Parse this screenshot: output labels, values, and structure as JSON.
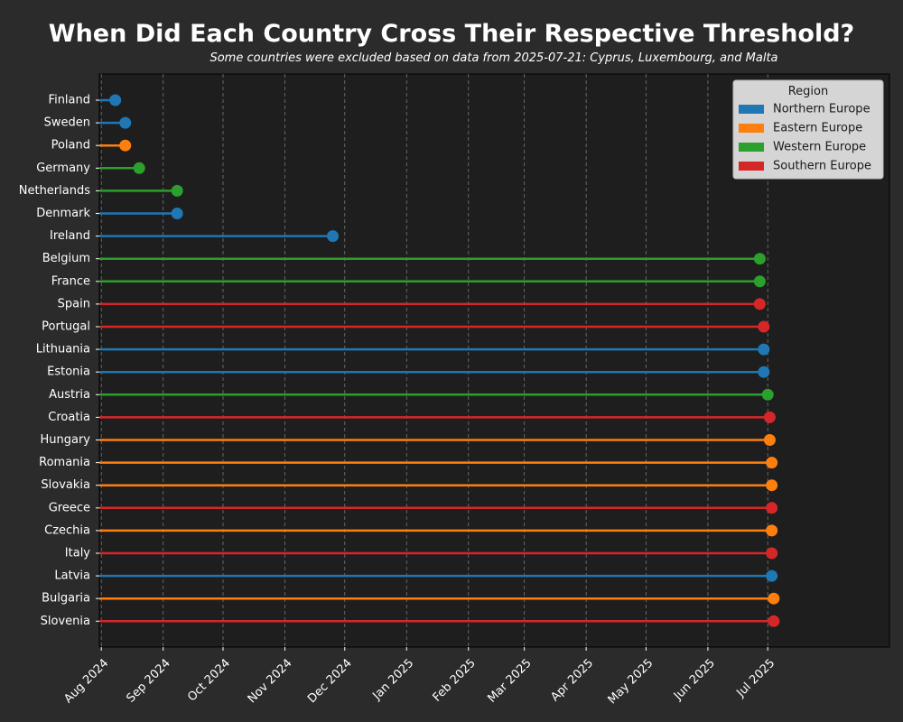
{
  "chart_data": {
    "type": "lollipop",
    "title": "When Did Each Country Cross Their Respective Threshold?",
    "subtitle": "Some countries were excluded based on data from 2025-07-21: Cyprus, Luxembourg, and Malta",
    "xlabel": "",
    "ylabel": "",
    "x_axis": "date",
    "xlim": [
      "2024-07-31",
      "2025-08-31"
    ],
    "x_ticks": [
      "2024-08-01",
      "2024-09-01",
      "2024-10-01",
      "2024-11-01",
      "2024-12-01",
      "2025-01-01",
      "2025-02-01",
      "2025-03-01",
      "2025-04-01",
      "2025-05-01",
      "2025-06-01",
      "2025-07-01"
    ],
    "x_tick_labels": [
      "Aug 2024",
      "Sep 2024",
      "Oct 2024",
      "Nov 2024",
      "Dec 2024",
      "Jan 2025",
      "Feb 2025",
      "Mar 2025",
      "Apr 2025",
      "May 2025",
      "Jun 2025",
      "Jul 2025"
    ],
    "grid": "vertical dashed",
    "legend": {
      "title": "Region",
      "position": "top-right",
      "entries": [
        {
          "label": "Northern Europe",
          "color": "#1f77b4"
        },
        {
          "label": "Eastern Europe",
          "color": "#ff7f0e"
        },
        {
          "label": "Western Europe",
          "color": "#2ca02c"
        },
        {
          "label": "Southern Europe",
          "color": "#d62728"
        }
      ]
    },
    "countries": [
      {
        "name": "Finland",
        "region": "Northern Europe",
        "date": "2024-08-08"
      },
      {
        "name": "Sweden",
        "region": "Northern Europe",
        "date": "2024-08-13"
      },
      {
        "name": "Poland",
        "region": "Eastern Europe",
        "date": "2024-08-13"
      },
      {
        "name": "Germany",
        "region": "Western Europe",
        "date": "2024-08-20"
      },
      {
        "name": "Netherlands",
        "region": "Western Europe",
        "date": "2024-09-08"
      },
      {
        "name": "Denmark",
        "region": "Northern Europe",
        "date": "2024-09-08"
      },
      {
        "name": "Ireland",
        "region": "Northern Europe",
        "date": "2024-11-25"
      },
      {
        "name": "Belgium",
        "region": "Western Europe",
        "date": "2025-06-27"
      },
      {
        "name": "France",
        "region": "Western Europe",
        "date": "2025-06-27"
      },
      {
        "name": "Spain",
        "region": "Southern Europe",
        "date": "2025-06-27"
      },
      {
        "name": "Portugal",
        "region": "Southern Europe",
        "date": "2025-06-29"
      },
      {
        "name": "Lithuania",
        "region": "Northern Europe",
        "date": "2025-06-29"
      },
      {
        "name": "Estonia",
        "region": "Northern Europe",
        "date": "2025-06-29"
      },
      {
        "name": "Austria",
        "region": "Western Europe",
        "date": "2025-07-01"
      },
      {
        "name": "Croatia",
        "region": "Southern Europe",
        "date": "2025-07-02"
      },
      {
        "name": "Hungary",
        "region": "Eastern Europe",
        "date": "2025-07-02"
      },
      {
        "name": "Romania",
        "region": "Eastern Europe",
        "date": "2025-07-03"
      },
      {
        "name": "Slovakia",
        "region": "Eastern Europe",
        "date": "2025-07-03"
      },
      {
        "name": "Greece",
        "region": "Southern Europe",
        "date": "2025-07-03"
      },
      {
        "name": "Czechia",
        "region": "Eastern Europe",
        "date": "2025-07-03"
      },
      {
        "name": "Italy",
        "region": "Southern Europe",
        "date": "2025-07-03"
      },
      {
        "name": "Latvia",
        "region": "Northern Europe",
        "date": "2025-07-03"
      },
      {
        "name": "Bulgaria",
        "region": "Eastern Europe",
        "date": "2025-07-04"
      },
      {
        "name": "Slovenia",
        "region": "Southern Europe",
        "date": "2025-07-04"
      }
    ]
  },
  "colors": {
    "page_background": "#2b2b2b",
    "plot_background": "#1e1e1e",
    "text": "#ffffff",
    "grid": "#777777",
    "legend_background": "#d5d5d5",
    "legend_text": "#1a1a1a"
  }
}
